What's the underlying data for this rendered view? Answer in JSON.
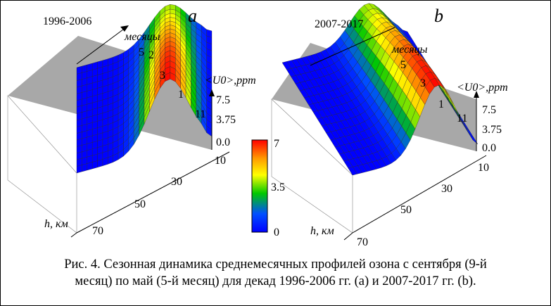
{
  "caption": {
    "line1": "Рис. 4. Сезонная динамика среднемесячных профилей озона с сентября (9-й",
    "line2": "месяц) по май (5-й месяц) для декад 1996-2006 гг. (a) и 2007-2017 гг. (b)."
  },
  "colors": {
    "colormap": [
      "#0000ff",
      "#0050ff",
      "#00c800",
      "#ffff00",
      "#ff9a00",
      "#ff0000"
    ],
    "wall": "#a8a8a8",
    "mesh": "#2a2a2a"
  },
  "colorbar": {
    "max_label": "7",
    "mid_label": "3.5",
    "min_label": "0"
  },
  "chart_data": [
    {
      "type": "surface",
      "panel_letter": "a",
      "decade_label": "1996-2006",
      "month_axis_label": "месяцы",
      "month_ticks": [
        "5",
        "2",
        "3",
        "1",
        "11"
      ],
      "value_axis_label": "<U0>,ppm",
      "value_ticks": [
        "7.5",
        "3.75",
        "0.0"
      ],
      "height_axis_label": "h, км",
      "height_ticks": [
        "10",
        "30",
        "50",
        "70"
      ],
      "zlim": [
        0,
        7.5
      ],
      "color_range": [
        0,
        7
      ],
      "description_of_peak": {
        "h_km": 30,
        "max_ppm": 7
      }
    },
    {
      "type": "surface",
      "panel_letter": "b",
      "decade_label": "2007-2017",
      "month_axis_label": "месяцы",
      "month_ticks": [
        "5",
        "3",
        "1",
        "11"
      ],
      "value_axis_label": "<U0>,ppm",
      "value_ticks": [
        "7.5",
        "3.75",
        "0.0"
      ],
      "height_axis_label": "h, км",
      "height_ticks": [
        "10",
        "30",
        "50",
        "70"
      ],
      "zlim": [
        0,
        7.5
      ],
      "color_range": [
        0,
        7
      ],
      "description_of_peak": {
        "h_km": 30,
        "max_ppm": 7
      }
    }
  ]
}
